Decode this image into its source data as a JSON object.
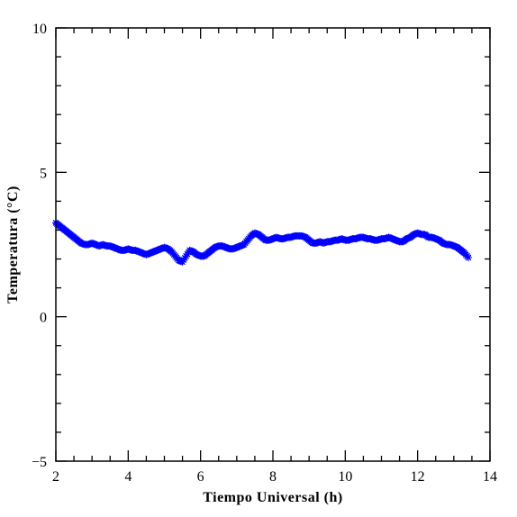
{
  "chart_data": {
    "type": "scatter",
    "xlabel": "Tiempo Universal (h)",
    "ylabel": "Temperatura (°C)",
    "xlim": [
      2,
      14
    ],
    "ylim": [
      -5,
      10
    ],
    "x_ticks": [
      2,
      4,
      6,
      8,
      10,
      12,
      14
    ],
    "y_ticks": [
      -5,
      0,
      5,
      10
    ],
    "x_minor_step": 0.5,
    "y_minor_step": 1,
    "marker": "star",
    "color": "#0000ff",
    "grid": false,
    "legend": "none",
    "series": [
      {
        "x": [
          2.0,
          2.1,
          2.2,
          2.3,
          2.4,
          2.5,
          2.6,
          2.7,
          2.8,
          2.9,
          3.0,
          3.1,
          3.2,
          3.3,
          3.4,
          3.5,
          3.6,
          3.7,
          3.8,
          3.9,
          4.0,
          4.1,
          4.2,
          4.3,
          4.4,
          4.5,
          4.6,
          4.7,
          4.8,
          4.9,
          5.0,
          5.1,
          5.2,
          5.3,
          5.4,
          5.5,
          5.6,
          5.7,
          5.8,
          5.9,
          6.0,
          6.1,
          6.2,
          6.3,
          6.4,
          6.5,
          6.6,
          6.7,
          6.8,
          6.9,
          7.0,
          7.1,
          7.2,
          7.3,
          7.4,
          7.5,
          7.6,
          7.7,
          7.8,
          7.9,
          8.0,
          8.1,
          8.2,
          8.3,
          8.4,
          8.5,
          8.6,
          8.7,
          8.8,
          8.9,
          9.0,
          9.1,
          9.2,
          9.3,
          9.4,
          9.5,
          9.6,
          9.7,
          9.8,
          9.9,
          10.0,
          10.1,
          10.2,
          10.3,
          10.4,
          10.5,
          10.6,
          10.7,
          10.8,
          10.9,
          11.0,
          11.1,
          11.2,
          11.3,
          11.4,
          11.5,
          11.6,
          11.7,
          11.8,
          11.9,
          12.0,
          12.1,
          12.2,
          12.3,
          12.4,
          12.5,
          12.6,
          12.7,
          12.8,
          12.9,
          13.0,
          13.1,
          13.2,
          13.3,
          13.4
        ],
        "y": [
          3.25,
          3.15,
          3.05,
          2.95,
          2.85,
          2.75,
          2.65,
          2.55,
          2.5,
          2.5,
          2.55,
          2.5,
          2.45,
          2.5,
          2.45,
          2.45,
          2.4,
          2.35,
          2.3,
          2.3,
          2.35,
          2.3,
          2.3,
          2.25,
          2.2,
          2.15,
          2.2,
          2.25,
          2.3,
          2.35,
          2.4,
          2.35,
          2.25,
          2.1,
          1.95,
          1.9,
          2.1,
          2.3,
          2.25,
          2.15,
          2.1,
          2.1,
          2.2,
          2.3,
          2.4,
          2.45,
          2.45,
          2.4,
          2.35,
          2.35,
          2.4,
          2.45,
          2.5,
          2.65,
          2.8,
          2.9,
          2.85,
          2.75,
          2.65,
          2.65,
          2.7,
          2.75,
          2.7,
          2.7,
          2.75,
          2.75,
          2.8,
          2.8,
          2.8,
          2.75,
          2.65,
          2.55,
          2.55,
          2.6,
          2.55,
          2.6,
          2.6,
          2.65,
          2.65,
          2.7,
          2.65,
          2.65,
          2.7,
          2.7,
          2.75,
          2.75,
          2.7,
          2.7,
          2.65,
          2.65,
          2.7,
          2.7,
          2.75,
          2.7,
          2.65,
          2.6,
          2.6,
          2.7,
          2.75,
          2.85,
          2.9,
          2.85,
          2.85,
          2.75,
          2.75,
          2.7,
          2.65,
          2.55,
          2.5,
          2.5,
          2.45,
          2.4,
          2.3,
          2.2,
          2.05
        ]
      }
    ]
  }
}
